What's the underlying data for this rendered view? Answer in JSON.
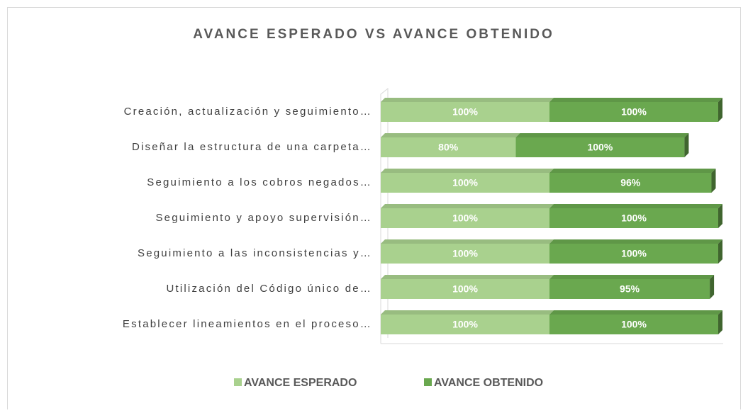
{
  "chart_data": {
    "type": "stacked-bar-horizontal",
    "title": "AVANCE ESPERADO VS AVANCE OBTENIDO",
    "categories": [
      "Creación, actualización y seguimiento…",
      "Diseñar la estructura de una carpeta…",
      "Seguimiento a los cobros negados…",
      "Seguimiento y apoyo supervisión…",
      "Seguimiento a las inconsistencias y…",
      "Utilización del Código único de…",
      "Establecer lineamientos en el proceso…"
    ],
    "series": [
      {
        "name": "AVANCE ESPERADO",
        "color": "#a9d18e",
        "values": [
          100,
          80,
          100,
          100,
          100,
          100,
          100
        ],
        "value_labels": [
          "100%",
          "80%",
          "100%",
          "100%",
          "100%",
          "100%",
          "100%"
        ]
      },
      {
        "name": "AVANCE OBTENIDO",
        "color": "#6aa84f",
        "values": [
          100,
          100,
          96,
          100,
          100,
          95,
          100
        ],
        "value_labels": [
          "100%",
          "100%",
          "96%",
          "100%",
          "100%",
          "95%",
          "100%"
        ]
      }
    ],
    "legend": "bottom"
  }
}
